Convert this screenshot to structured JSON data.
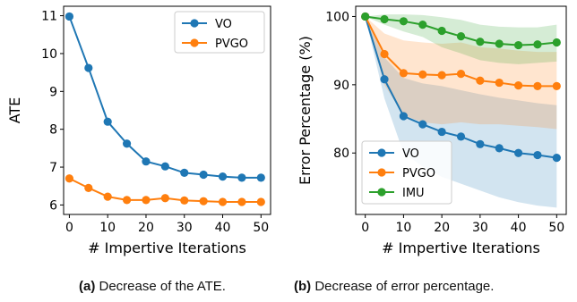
{
  "captions": [
    {
      "tag": "(a)",
      "text": " Decrease of the ATE."
    },
    {
      "tag": "(b)",
      "text": " Decrease of error percentage."
    }
  ],
  "colors": {
    "VO": "#1f77b4",
    "PVGO": "#ff7f0e",
    "IMU": "#2ca02c"
  },
  "chart_data": [
    {
      "type": "line",
      "xlabel": "# Impertive Iterations",
      "ylabel": "ATE",
      "xlim": [
        -1.5,
        52.5
      ],
      "ylim": [
        5.75,
        11.25
      ],
      "xticks": [
        0,
        10,
        20,
        30,
        40,
        50
      ],
      "yticks": [
        6,
        7,
        8,
        9,
        10,
        11
      ],
      "grid": false,
      "legend": "top-right",
      "x": [
        0,
        5,
        10,
        15,
        20,
        25,
        30,
        35,
        40,
        45,
        50
      ],
      "series": [
        {
          "name": "VO",
          "color": "#1f77b4",
          "values": [
            10.98,
            9.62,
            8.2,
            7.62,
            7.15,
            7.02,
            6.85,
            6.8,
            6.75,
            6.72,
            6.72
          ]
        },
        {
          "name": "PVGO",
          "color": "#ff7f0e",
          "values": [
            6.7,
            6.45,
            6.22,
            6.13,
            6.13,
            6.18,
            6.12,
            6.1,
            6.08,
            6.08,
            6.08
          ]
        }
      ]
    },
    {
      "type": "line",
      "xlabel": "# Impertive Iterations",
      "ylabel": "Error Percentage (%)",
      "xlim": [
        -2.5,
        52.5
      ],
      "ylim": [
        71,
        101.5
      ],
      "xticks": [
        0,
        10,
        20,
        30,
        40,
        50
      ],
      "yticks": [
        80,
        90,
        100
      ],
      "grid": false,
      "legend": "bottom-left",
      "x": [
        0,
        5,
        10,
        15,
        20,
        25,
        30,
        35,
        40,
        45,
        50
      ],
      "series": [
        {
          "name": "VO",
          "color": "#1f77b4",
          "values": [
            100,
            90.8,
            85.4,
            84.2,
            83.1,
            82.4,
            81.3,
            80.7,
            80.0,
            79.7,
            79.3
          ],
          "band_low": [
            100,
            88,
            80,
            78,
            76.5,
            75.5,
            74.5,
            73.5,
            72.8,
            72.3,
            72.0
          ],
          "band_high": [
            100,
            94,
            91,
            90.2,
            89.8,
            89.2,
            88.6,
            88.1,
            87.7,
            87.3,
            87.0
          ]
        },
        {
          "name": "PVGO",
          "color": "#ff7f0e",
          "values": [
            100,
            94.5,
            91.7,
            91.5,
            91.4,
            91.6,
            90.6,
            90.3,
            89.9,
            89.8,
            89.8
          ],
          "band_low": [
            100,
            90,
            85.5,
            84.5,
            84.2,
            84.5,
            84.2,
            84.2,
            84.0,
            83.8,
            83.5
          ],
          "band_high": [
            100,
            97.5,
            96.5,
            96.2,
            96.0,
            96.2,
            95.5,
            95.3,
            95.0,
            94.8,
            94.8
          ]
        },
        {
          "name": "IMU",
          "color": "#2ca02c",
          "values": [
            100,
            99.6,
            99.3,
            98.8,
            97.9,
            97.1,
            96.3,
            96.0,
            95.8,
            95.9,
            96.2
          ],
          "band_low": [
            100,
            98.8,
            97.8,
            97.0,
            95.5,
            94.6,
            93.6,
            93.2,
            93.0,
            93.2,
            93.4
          ],
          "band_high": [
            100,
            100.3,
            100.3,
            100.2,
            99.9,
            99.5,
            98.8,
            98.5,
            98.4,
            98.4,
            98.8
          ]
        }
      ]
    }
  ]
}
